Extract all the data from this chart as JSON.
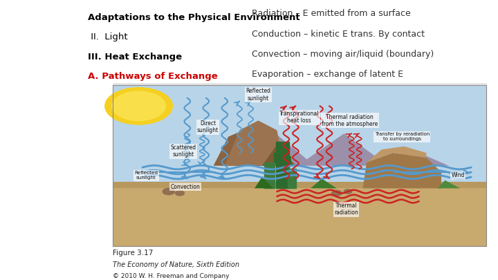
{
  "title_left_lines": [
    {
      "text": "Adaptations to the Physical Environment",
      "bold": true,
      "color": "#000000",
      "size": 9.5
    },
    {
      "text": " II.  Light",
      "bold": false,
      "color": "#000000",
      "size": 9.5
    },
    {
      "text": "III. Heat Exchange",
      "bold": true,
      "color": "#000000",
      "size": 9.5
    },
    {
      "text": "A. Pathways of Exchange",
      "bold": true,
      "color": "#cc0000",
      "size": 9.5
    }
  ],
  "title_right_lines": [
    {
      "text": "Radiation – E emitted from a surface",
      "color": "#333333",
      "size": 9.0
    },
    {
      "text": "Conduction – kinetic E trans. By contact",
      "color": "#333333",
      "size": 9.0
    },
    {
      "text": "Convection – moving air/liquid (boundary)",
      "color": "#333333",
      "size": 9.0
    },
    {
      "text": "Evaporation – exchange of latent E",
      "color": "#333333",
      "size": 9.0
    }
  ],
  "caption_lines": [
    {
      "text": "Figure 3.17",
      "size": 7.5,
      "style": "normal"
    },
    {
      "text": "The Economy of Nature, Sixth Edition",
      "size": 7.0,
      "style": "italic"
    },
    {
      "text": "© 2010 W. H. Freeman and Company",
      "size": 6.5,
      "style": "normal"
    }
  ],
  "bg_color": "#ffffff",
  "sky_color": "#b8d4e8",
  "ground_color": "#c8a96e",
  "sun_color1": "#f5d020",
  "sun_color2": "#f9e04b",
  "blue_arrow_color": "#5599cc",
  "red_arrow_color": "#cc2222",
  "ix0": 0.225,
  "iy0": 0.095,
  "iw": 0.753,
  "ih": 0.595
}
